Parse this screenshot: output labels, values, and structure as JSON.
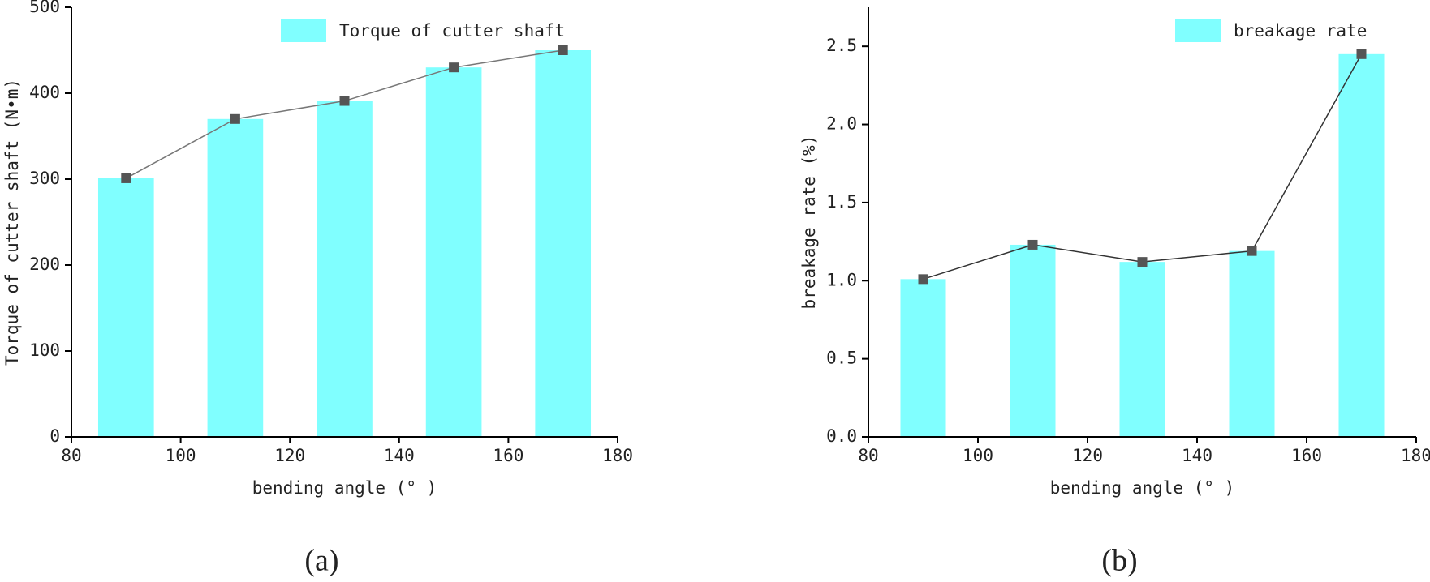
{
  "chart_data": [
    {
      "type": "bar",
      "caption": "(a)",
      "x_label": "bending angle (° )",
      "y_label": "Torque of cutter shaft (N•m)",
      "x": [
        90,
        110,
        130,
        150,
        170
      ],
      "series": [
        {
          "name": "Torque of cutter shaft",
          "color": "#80ffff",
          "line_color": "#777777",
          "values": [
            301,
            370,
            391,
            430,
            450
          ]
        }
      ],
      "xlim": [
        80,
        180
      ],
      "xticks": [
        80,
        100,
        120,
        140,
        160,
        180
      ],
      "ylim": [
        0,
        500
      ],
      "yticks": [
        0,
        100,
        200,
        300,
        400,
        500
      ],
      "legend": "upper right"
    },
    {
      "type": "bar",
      "caption": "(b)",
      "x_label": "bending angle (° )",
      "y_label": "breakage rate (%)",
      "x": [
        90,
        110,
        130,
        150,
        170
      ],
      "series": [
        {
          "name": "breakage rate",
          "color": "#80ffff",
          "line_color": "#333333",
          "values": [
            1.01,
            1.23,
            1.12,
            1.19,
            2.45
          ]
        }
      ],
      "xlim": [
        80,
        180
      ],
      "xticks": [
        80,
        100,
        120,
        140,
        160,
        180
      ],
      "ylim": [
        0,
        2.75
      ],
      "yticks": [
        {
          "value": 0,
          "label": "0.0"
        },
        0.5,
        {
          "value": 1,
          "label": "1.0"
        },
        1.5,
        {
          "value": 2,
          "label": "2.0"
        },
        2.5
      ],
      "legend": "upper right"
    }
  ]
}
